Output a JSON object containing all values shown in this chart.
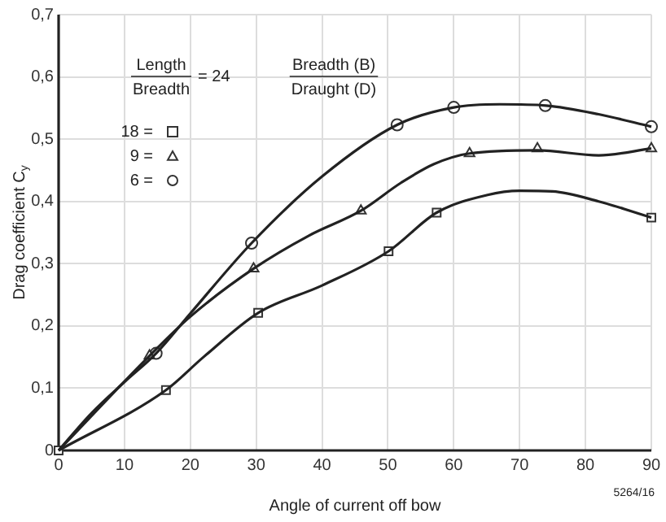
{
  "chart_data": {
    "type": "line",
    "xlabel": "Angle of current off bow",
    "ylabel": "Drag coefficient C$_{y}$",
    "xlim": [
      0,
      90
    ],
    "xticks": [
      0,
      10,
      20,
      30,
      40,
      50,
      60,
      70,
      80,
      90
    ],
    "ylim": [
      0,
      0.7
    ],
    "yticks": [
      {
        "value": 0,
        "label": "0"
      },
      {
        "value": 0.1,
        "label": "0,1"
      },
      {
        "value": 0.2,
        "label": "0,2"
      },
      {
        "value": 0.3,
        "label": "0,3"
      },
      {
        "value": 0.4,
        "label": "0,4"
      },
      {
        "value": 0.5,
        "label": "0,5"
      },
      {
        "value": 0.6,
        "label": "0,6"
      },
      {
        "value": 0.7,
        "label": "0,7"
      }
    ],
    "grid": true,
    "legend": "top left",
    "line_style": "solid",
    "annotations": [
      "Length",
      "Breadth",
      "= 24",
      "Breadth (B)",
      "Draught (D)",
      "5264/16"
    ],
    "series": [
      {
        "type": "line",
        "color": "#222222",
        "marker": "none",
        "x": [
          0,
          16.3,
          22,
          30.3,
          40,
          50.1,
          57.4,
          65,
          70,
          75,
          82,
          90
        ],
        "values": [
          0,
          0.097,
          0.15,
          0.221,
          0.265,
          0.32,
          0.382,
          0.41,
          0.417,
          0.416,
          0.4,
          0.374
        ]
      },
      {
        "type": "line",
        "color": "#222222",
        "marker": "none",
        "x": [
          0,
          13.8,
          20,
          29.6,
          38,
          45.9,
          52,
          57,
          62.4,
          72.7,
          82,
          90
        ],
        "values": [
          0,
          0.152,
          0.215,
          0.292,
          0.345,
          0.385,
          0.43,
          0.46,
          0.477,
          0.482,
          0.474,
          0.485
        ]
      },
      {
        "type": "line",
        "color": "#222222",
        "marker": "none",
        "x": [
          0,
          5,
          10,
          14.8,
          20,
          29.3,
          40,
          51.4,
          60,
          67,
          74,
          82,
          90
        ],
        "values": [
          0,
          0.06,
          0.11,
          0.156,
          0.22,
          0.333,
          0.44,
          0.523,
          0.551,
          0.556,
          0.554,
          0.54,
          0.52
        ]
      },
      {
        "type": "scatter",
        "name": "18 =",
        "color": "#333333",
        "marker": "square",
        "x": [
          0,
          16.3,
          30.3,
          50.1,
          57.4,
          90
        ],
        "values": [
          0,
          0.097,
          0.221,
          0.32,
          0.382,
          0.374
        ]
      },
      {
        "type": "scatter",
        "name": "9 =",
        "color": "#333333",
        "marker": "triangle",
        "x": [
          13.8,
          29.6,
          45.9,
          62.4,
          72.7,
          90
        ],
        "values": [
          0.152,
          0.292,
          0.385,
          0.477,
          0.485,
          0.485
        ]
      },
      {
        "type": "scatter",
        "name": "6 =",
        "color": "#333333",
        "marker": "circle",
        "x": [
          14.8,
          29.3,
          51.4,
          60,
          73.9,
          90
        ],
        "values": [
          0.156,
          0.333,
          0.523,
          0.551,
          0.554,
          0.52
        ]
      }
    ]
  }
}
